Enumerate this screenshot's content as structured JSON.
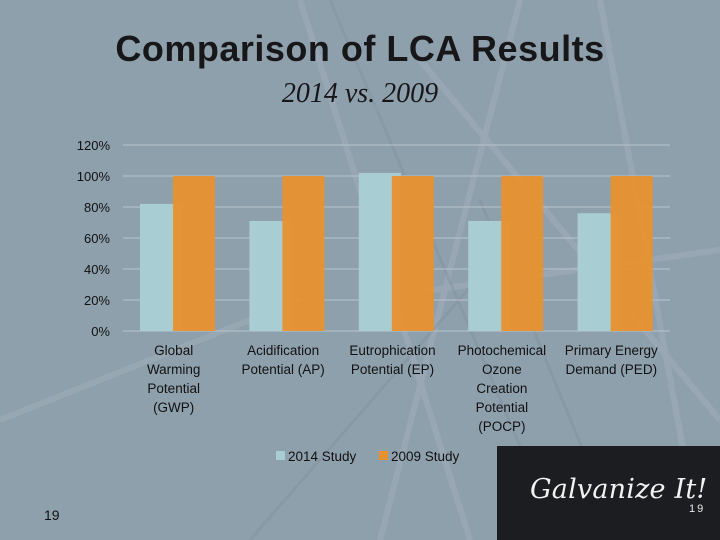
{
  "slide": {
    "title": "Comparison of LCA Results",
    "subtitle": "2014 vs. 2009",
    "page_number": "19"
  },
  "branding": {
    "text": "Galvanize It!",
    "page_number": "19"
  },
  "colors": {
    "series_2014": "#a8cdd3",
    "series_2009": "#e8912f",
    "gridline": "#b9c3ca",
    "axis_text": "#111111"
  },
  "chart_data": {
    "type": "bar",
    "title": "",
    "xlabel": "",
    "ylabel": "",
    "ylim": [
      0,
      120
    ],
    "yticks": [
      0,
      20,
      40,
      60,
      80,
      100,
      120
    ],
    "ytick_labels": [
      "0%",
      "20%",
      "40%",
      "60%",
      "80%",
      "100%",
      "120%"
    ],
    "categories": [
      "Global Warming Potential (GWP)",
      "Acidification Potential (AP)",
      "Eutrophication Potential (EP)",
      "Photochemical Ozone Creation Potential (POCP)",
      "Primary Energy Demand (PED)"
    ],
    "category_lines": [
      [
        "Global",
        "Warming",
        "Potential",
        "(GWP)"
      ],
      [
        "Acidification",
        "Potential (AP)"
      ],
      [
        "Eutrophication",
        "Potential (EP)"
      ],
      [
        "Photochemical",
        "Ozone",
        "Creation",
        "Potential",
        "(POCP)"
      ],
      [
        "Primary Energy",
        "Demand (PED)"
      ]
    ],
    "series": [
      {
        "name": "2014 Study",
        "values": [
          82,
          71,
          102,
          71,
          76
        ]
      },
      {
        "name": "2009 Study",
        "values": [
          100,
          100,
          100,
          100,
          100
        ]
      }
    ],
    "grid": true,
    "legend": "bottom"
  }
}
